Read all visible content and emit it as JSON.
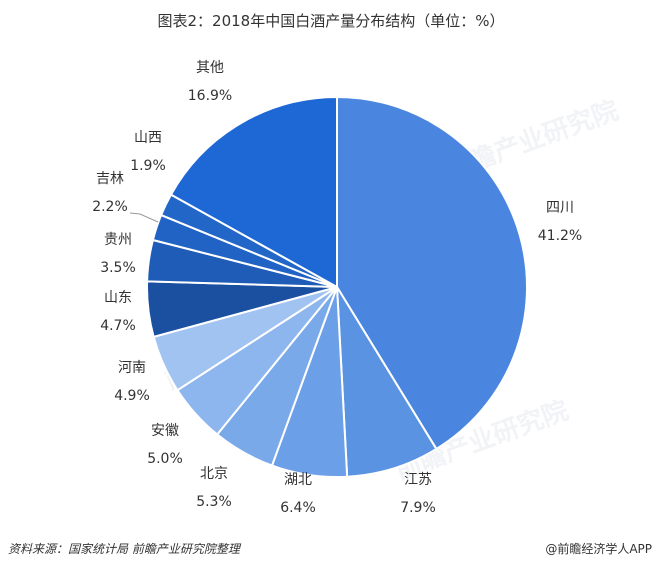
{
  "title": "图表2：2018年中国白酒产量分布结构（单位：%）",
  "source_left": "资料来源：国家统计局 前瞻产业研究院整理",
  "source_right": "@前瞻经济学人APP",
  "watermark_text": "前瞻产业研究院",
  "chart_data": {
    "type": "pie",
    "title": "图表2：2018年中国白酒产量分布结构（单位：%）",
    "unit": "%",
    "slices": [
      {
        "name": "四川",
        "value": 41.2,
        "label": "41.2%",
        "color": "#4a86e0"
      },
      {
        "name": "江苏",
        "value": 7.9,
        "label": "7.9%",
        "color": "#5b93e3"
      },
      {
        "name": "湖北",
        "value": 6.4,
        "label": "6.4%",
        "color": "#6b9fe7"
      },
      {
        "name": "北京",
        "value": 5.3,
        "label": "5.3%",
        "color": "#7aa9ea"
      },
      {
        "name": "安徽",
        "value": 5.0,
        "label": "5.0%",
        "color": "#8db6ee"
      },
      {
        "name": "河南",
        "value": 4.9,
        "label": "4.9%",
        "color": "#a0c3f2"
      },
      {
        "name": "山东",
        "value": 4.7,
        "label": "4.7%",
        "color": "#1b4fa0"
      },
      {
        "name": "贵州",
        "value": 3.5,
        "label": "3.5%",
        "color": "#1f5cb8"
      },
      {
        "name": "吉林",
        "value": 2.2,
        "label": "2.2%",
        "color": "#2163c4"
      },
      {
        "name": "山西",
        "value": 1.9,
        "label": "1.9%",
        "color": "#2266c8"
      },
      {
        "name": "其他",
        "value": 16.9,
        "label": "16.9%",
        "color": "#1e68d6"
      }
    ]
  }
}
